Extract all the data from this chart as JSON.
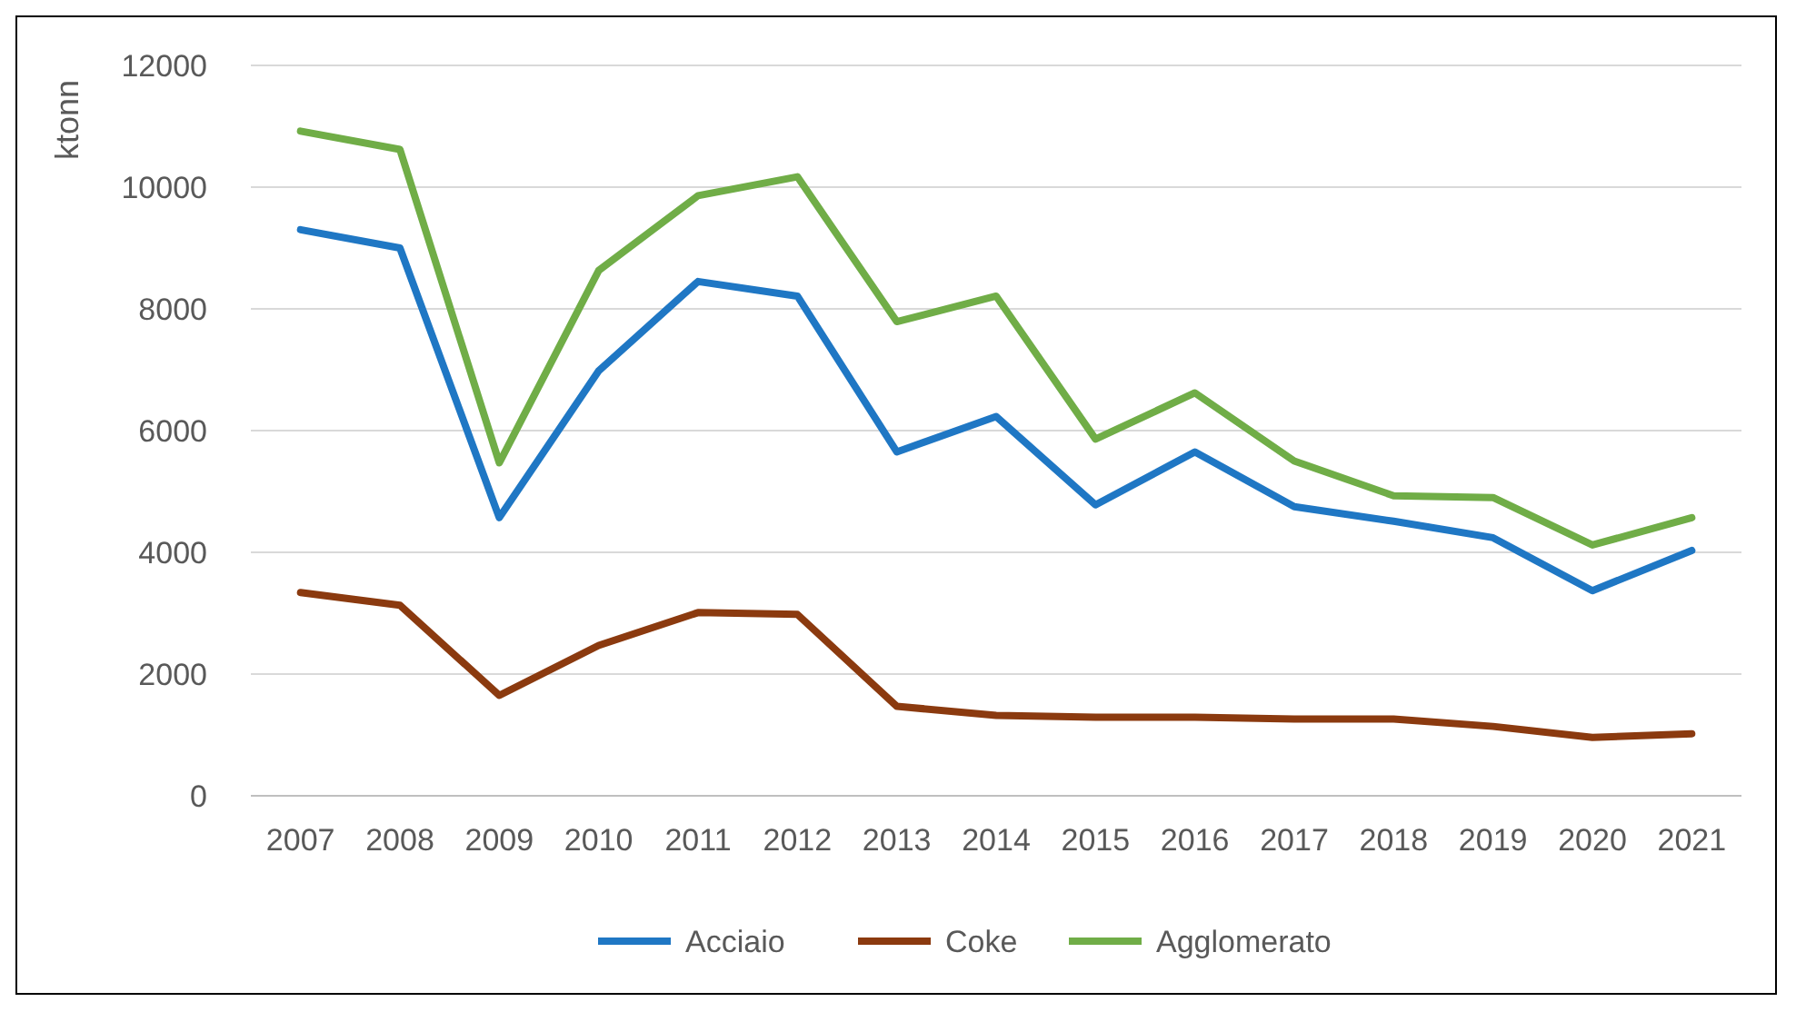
{
  "chart_data": {
    "type": "line",
    "ylabel": "ktonn",
    "categories": [
      "2007",
      "2008",
      "2009",
      "2010",
      "2011",
      "2012",
      "2013",
      "2014",
      "2015",
      "2016",
      "2017",
      "2018",
      "2019",
      "2020",
      "2021"
    ],
    "series": [
      {
        "name": "Acciaio",
        "color": "#1f77c4",
        "values": [
          9300,
          9000,
          4570,
          6980,
          8450,
          8210,
          5650,
          6230,
          4780,
          5650,
          4750,
          4510,
          4240,
          3370,
          4030
        ]
      },
      {
        "name": "Coke",
        "color": "#8b3a0f",
        "values": [
          3340,
          3130,
          1650,
          2470,
          3010,
          2980,
          1470,
          1320,
          1290,
          1290,
          1260,
          1260,
          1140,
          960,
          1020
        ]
      },
      {
        "name": "Agglomerato",
        "color": "#70ad47",
        "values": [
          10920,
          10620,
          5470,
          8630,
          9860,
          10170,
          7790,
          8210,
          5860,
          6620,
          5500,
          4930,
          4900,
          4120,
          4570
        ]
      }
    ],
    "ylim": [
      0,
      12000
    ],
    "yticks": [
      0,
      2000,
      4000,
      6000,
      8000,
      10000,
      12000
    ],
    "grid": "y",
    "legend": "bottom",
    "marker": "none",
    "line_style": "solid"
  }
}
